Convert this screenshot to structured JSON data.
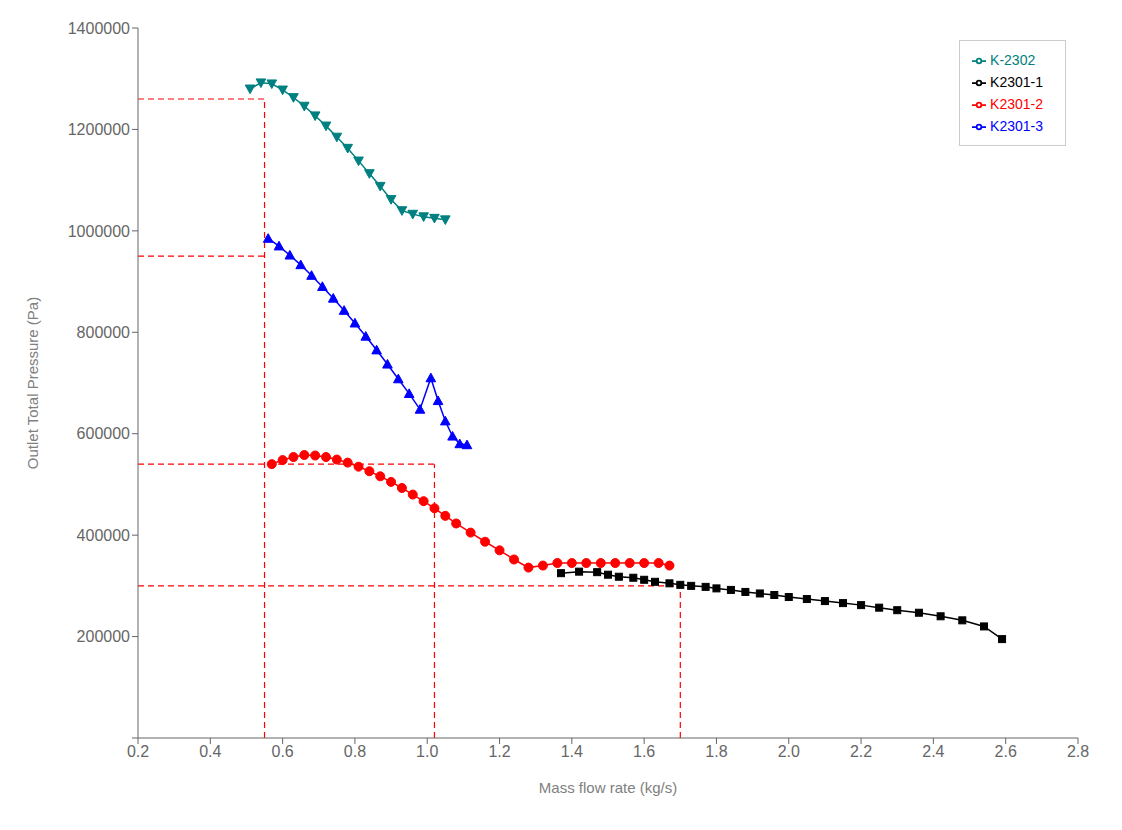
{
  "chart_data": {
    "type": "line",
    "xlabel": "Mass flow rate (kg/s)",
    "ylabel": "Outlet Total Pressure (Pa)",
    "xlim": [
      0.2,
      2.8
    ],
    "ylim": [
      0,
      1400000
    ],
    "xticks": [
      0.2,
      0.4,
      0.6,
      0.8,
      {
        "value": 1.0,
        "label": "1.0"
      },
      1.2,
      1.4,
      1.6,
      1.8,
      {
        "value": 2.0,
        "label": "2.0"
      },
      2.2,
      2.4,
      2.6,
      2.8
    ],
    "yticks": [
      {
        "value": 0,
        "label": null
      },
      200000,
      400000,
      600000,
      800000,
      1000000,
      1200000,
      1400000
    ],
    "grid": false,
    "legend": "upper right",
    "reference_lines": {
      "color": "red",
      "line_style": "dashed",
      "segments": [
        {
          "x": [
            0.55,
            0.55
          ],
          "y": [
            0,
            1260000
          ]
        },
        {
          "x": [
            1.02,
            1.02
          ],
          "y": [
            0,
            540000
          ]
        },
        {
          "x": [
            1.7,
            1.7
          ],
          "y": [
            0,
            300000
          ]
        },
        {
          "x": [
            0.2,
            0.55
          ],
          "y": [
            1260000,
            1260000
          ]
        },
        {
          "x": [
            0.2,
            0.55
          ],
          "y": [
            950000,
            950000
          ]
        },
        {
          "x": [
            0.2,
            1.02
          ],
          "y": [
            540000,
            540000
          ]
        },
        {
          "x": [
            0.2,
            1.7
          ],
          "y": [
            300000,
            300000
          ]
        }
      ]
    },
    "series": [
      {
        "name": "K2301-1",
        "color": "black",
        "marker": "square",
        "x": [
          1.37,
          1.42,
          1.47,
          1.5,
          1.53,
          1.57,
          1.6,
          1.63,
          1.67,
          1.7,
          1.73,
          1.77,
          1.8,
          1.84,
          1.88,
          1.92,
          1.96,
          2.0,
          2.05,
          2.1,
          2.15,
          2.2,
          2.25,
          2.3,
          2.36,
          2.42,
          2.48,
          2.54,
          2.59
        ],
        "values": [
          325000,
          328000,
          327000,
          322000,
          318000,
          316000,
          312000,
          308000,
          305000,
          302000,
          300000,
          298000,
          295000,
          292000,
          288000,
          285000,
          282000,
          278000,
          274000,
          270000,
          266000,
          262000,
          257000,
          252000,
          247000,
          240000,
          232000,
          220000,
          195000
        ]
      },
      {
        "name": "K2301-2",
        "color": "red",
        "marker": "circle",
        "x": [
          0.57,
          0.6,
          0.63,
          0.66,
          0.69,
          0.72,
          0.75,
          0.78,
          0.81,
          0.84,
          0.87,
          0.9,
          0.93,
          0.96,
          0.99,
          1.02,
          1.05,
          1.08,
          1.12,
          1.16,
          1.2,
          1.24,
          1.28,
          1.32,
          1.36,
          1.4,
          1.44,
          1.48,
          1.52,
          1.56,
          1.6,
          1.64,
          1.67
        ],
        "values": [
          540000,
          548000,
          554000,
          558000,
          557000,
          554000,
          549000,
          543000,
          535000,
          526000,
          516000,
          505000,
          493000,
          480000,
          467000,
          453000,
          438000,
          423000,
          405000,
          387000,
          370000,
          352000,
          336000,
          340000,
          345000,
          345000,
          345000,
          345000,
          345000,
          345000,
          345000,
          345000,
          340000
        ]
      },
      {
        "name": "K2301-3",
        "color": "blue",
        "marker": "triangle-up",
        "x": [
          0.56,
          0.59,
          0.62,
          0.65,
          0.68,
          0.71,
          0.74,
          0.77,
          0.8,
          0.83,
          0.86,
          0.89,
          0.92,
          0.95,
          0.98,
          1.01,
          1.03,
          1.05,
          1.07,
          1.09,
          1.11
        ],
        "values": [
          985000,
          970000,
          952000,
          933000,
          912000,
          890000,
          867000,
          843000,
          818000,
          792000,
          765000,
          737000,
          708000,
          679000,
          648000,
          710000,
          665000,
          625000,
          595000,
          580000,
          578000
        ]
      },
      {
        "name": "K-2302",
        "color": "#008080",
        "marker": "triangle-down",
        "x": [
          0.51,
          0.54,
          0.57,
          0.6,
          0.63,
          0.66,
          0.69,
          0.72,
          0.75,
          0.78,
          0.81,
          0.84,
          0.87,
          0.9,
          0.93,
          0.96,
          0.99,
          1.02,
          1.05
        ],
        "values": [
          1280000,
          1292000,
          1290000,
          1278000,
          1263000,
          1246000,
          1227000,
          1207000,
          1185000,
          1163000,
          1138000,
          1113000,
          1088000,
          1062000,
          1040000,
          1033000,
          1028000,
          1025000,
          1022000
        ]
      }
    ]
  }
}
